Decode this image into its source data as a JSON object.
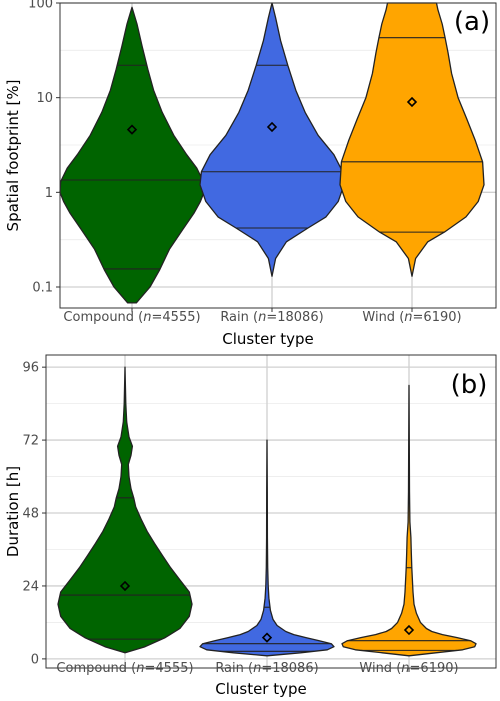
{
  "chart_data": [
    {
      "type": "violin",
      "panel_label": "(a)",
      "ylabel": "Spatial footprint [%]",
      "xlabel": "Cluster type",
      "yscale": "log",
      "ylim": [
        0.06,
        100
      ],
      "yticks": [
        0.1,
        1,
        10,
        100
      ],
      "ytick_labels": [
        "0.1",
        "1",
        "10",
        "100"
      ],
      "categories": [
        {
          "name": "Compound",
          "n": "4555"
        },
        {
          "name": "Rain",
          "n": "18086"
        },
        {
          "name": "Wind",
          "n": "6190"
        }
      ],
      "series": [
        {
          "name": "Compound",
          "color": "#006400",
          "min": 0.068,
          "max": 90,
          "q05": 0.155,
          "median": 1.35,
          "q95": 22,
          "mean": 4.6,
          "density": [
            [
              0.068,
              0.06
            ],
            [
              0.1,
              0.25
            ],
            [
              0.15,
              0.38
            ],
            [
              0.25,
              0.52
            ],
            [
              0.4,
              0.7
            ],
            [
              0.6,
              0.86
            ],
            [
              0.8,
              0.95
            ],
            [
              1.0,
              1.0
            ],
            [
              1.3,
              0.99
            ],
            [
              1.8,
              0.9
            ],
            [
              2.5,
              0.76
            ],
            [
              4,
              0.58
            ],
            [
              7,
              0.42
            ],
            [
              12,
              0.3
            ],
            [
              20,
              0.22
            ],
            [
              35,
              0.14
            ],
            [
              60,
              0.07
            ],
            [
              90,
              0.0
            ]
          ]
        },
        {
          "name": "Rain",
          "color": "#4169E1",
          "min": 0.13,
          "max": 100,
          "q05": 0.42,
          "median": 1.65,
          "q95": 22,
          "mean": 4.9,
          "density": [
            [
              0.13,
              0.0
            ],
            [
              0.2,
              0.05
            ],
            [
              0.3,
              0.2
            ],
            [
              0.42,
              0.5
            ],
            [
              0.55,
              0.75
            ],
            [
              0.8,
              0.92
            ],
            [
              1.2,
              1.0
            ],
            [
              1.65,
              0.98
            ],
            [
              2.5,
              0.86
            ],
            [
              4,
              0.64
            ],
            [
              7,
              0.46
            ],
            [
              12,
              0.33
            ],
            [
              22,
              0.22
            ],
            [
              40,
              0.12
            ],
            [
              70,
              0.05
            ],
            [
              100,
              0.0
            ]
          ]
        },
        {
          "name": "Wind",
          "color": "#FFA500",
          "min": 0.13,
          "max": 100,
          "q05": 0.38,
          "median": 2.1,
          "q95": 43,
          "mean": 9.0,
          "density": [
            [
              0.13,
              0.0
            ],
            [
              0.2,
              0.05
            ],
            [
              0.3,
              0.22
            ],
            [
              0.38,
              0.45
            ],
            [
              0.55,
              0.75
            ],
            [
              0.8,
              0.92
            ],
            [
              1.2,
              1.0
            ],
            [
              2.1,
              0.98
            ],
            [
              3.5,
              0.88
            ],
            [
              6,
              0.76
            ],
            [
              10,
              0.64
            ],
            [
              18,
              0.55
            ],
            [
              30,
              0.5
            ],
            [
              43,
              0.46
            ],
            [
              60,
              0.42
            ],
            [
              85,
              0.36
            ],
            [
              100,
              0.34
            ]
          ]
        }
      ]
    },
    {
      "type": "violin",
      "panel_label": "(b)",
      "ylabel": "Duration [h]",
      "xlabel": "Cluster type",
      "yscale": "linear",
      "ylim": [
        -3,
        100
      ],
      "yticks": [
        0,
        24,
        48,
        72,
        96
      ],
      "ytick_labels": [
        "0",
        "24",
        "48",
        "72",
        "96"
      ],
      "categories": [
        {
          "name": "Compound",
          "n": "4555"
        },
        {
          "name": "Rain",
          "n": "18086"
        },
        {
          "name": "Wind",
          "n": "6190"
        }
      ],
      "series": [
        {
          "name": "Compound",
          "color": "#006400",
          "min": 2,
          "max": 96,
          "q05": 6.5,
          "median": 21,
          "q95": 53,
          "mean": 24,
          "density": [
            [
              2,
              0.0
            ],
            [
              4,
              0.3
            ],
            [
              7,
              0.6
            ],
            [
              10,
              0.82
            ],
            [
              14,
              0.96
            ],
            [
              18,
              1.0
            ],
            [
              22,
              0.96
            ],
            [
              26,
              0.82
            ],
            [
              30,
              0.68
            ],
            [
              34,
              0.56
            ],
            [
              38,
              0.44
            ],
            [
              42,
              0.33
            ],
            [
              46,
              0.24
            ],
            [
              50,
              0.16
            ],
            [
              53,
              0.13
            ],
            [
              56,
              0.09
            ],
            [
              60,
              0.06
            ],
            [
              64,
              0.05
            ],
            [
              67,
              0.09
            ],
            [
              70,
              0.11
            ],
            [
              73,
              0.06
            ],
            [
              78,
              0.025
            ],
            [
              84,
              0.012
            ],
            [
              90,
              0.006
            ],
            [
              96,
              0.0
            ]
          ]
        },
        {
          "name": "Rain",
          "color": "#4169E1",
          "min": 1,
          "max": 72,
          "q05": 2.5,
          "median": 5,
          "q95": 17,
          "mean": 7,
          "density": [
            [
              1,
              0.0
            ],
            [
              2,
              0.5
            ],
            [
              3,
              0.9
            ],
            [
              4,
              1.0
            ],
            [
              5,
              0.96
            ],
            [
              6,
              0.78
            ],
            [
              7,
              0.58
            ],
            [
              8,
              0.4
            ],
            [
              9,
              0.28
            ],
            [
              11,
              0.15
            ],
            [
              13,
              0.09
            ],
            [
              16,
              0.05
            ],
            [
              20,
              0.028
            ],
            [
              24,
              0.018
            ],
            [
              30,
              0.01
            ],
            [
              40,
              0.006
            ],
            [
              55,
              0.004
            ],
            [
              72,
              0.0
            ]
          ]
        },
        {
          "name": "Wind",
          "color": "#FFA500",
          "min": 1,
          "max": 90,
          "q05": 2.8,
          "median": 6,
          "q95": 30,
          "mean": 9.5,
          "density": [
            [
              1,
              0.0
            ],
            [
              2,
              0.4
            ],
            [
              3,
              0.8
            ],
            [
              4,
              0.98
            ],
            [
              5,
              1.0
            ],
            [
              6,
              0.92
            ],
            [
              7,
              0.72
            ],
            [
              8,
              0.5
            ],
            [
              9,
              0.34
            ],
            [
              10,
              0.26
            ],
            [
              12,
              0.17
            ],
            [
              15,
              0.11
            ],
            [
              18,
              0.075
            ],
            [
              22,
              0.06
            ],
            [
              26,
              0.05
            ],
            [
              30,
              0.042
            ],
            [
              35,
              0.035
            ],
            [
              40,
              0.028
            ],
            [
              45,
              0.014
            ],
            [
              55,
              0.007
            ],
            [
              70,
              0.004
            ],
            [
              90,
              0.0
            ]
          ]
        }
      ]
    }
  ]
}
